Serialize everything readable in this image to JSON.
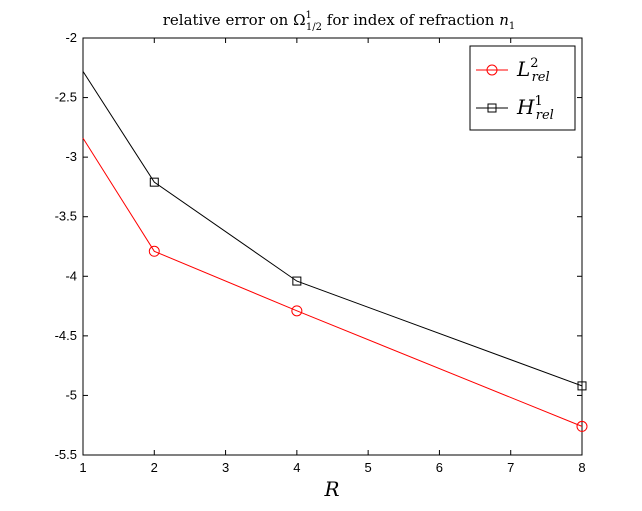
{
  "chart_data": {
    "type": "line",
    "title": {
      "prefix": "relative error on ",
      "omega": "Ω",
      "omega_sup": "1",
      "omega_sub": "1/2",
      "middle": " for index of refraction ",
      "n": "n",
      "n_sub": "1"
    },
    "xlabel": "R",
    "ylabel": "",
    "xlim": [
      1,
      8
    ],
    "ylim": [
      -5.5,
      -2
    ],
    "xticks": [
      "1",
      "2",
      "3",
      "4",
      "5",
      "6",
      "7",
      "8"
    ],
    "yticks": [
      "-2",
      "-2.5",
      "-3",
      "-3.5",
      "-4",
      "-4.5",
      "-5",
      "-5.5"
    ],
    "x": [
      1,
      2,
      4,
      8
    ],
    "series": [
      {
        "name": "L",
        "name_sup": "2",
        "name_sub": "rel",
        "color": "#ff0000",
        "marker": "circle",
        "values": [
          -2.84,
          -3.79,
          -4.29,
          -5.26
        ],
        "marker_visible": [
          false,
          true,
          true,
          true
        ]
      },
      {
        "name": "H",
        "name_sup": "1",
        "name_sub": "rel",
        "color": "#000000",
        "marker": "square",
        "values": [
          -2.28,
          -3.21,
          -4.04,
          -4.92
        ],
        "marker_visible": [
          false,
          true,
          true,
          true
        ]
      }
    ],
    "grid": false,
    "legend_position": "top-right"
  }
}
